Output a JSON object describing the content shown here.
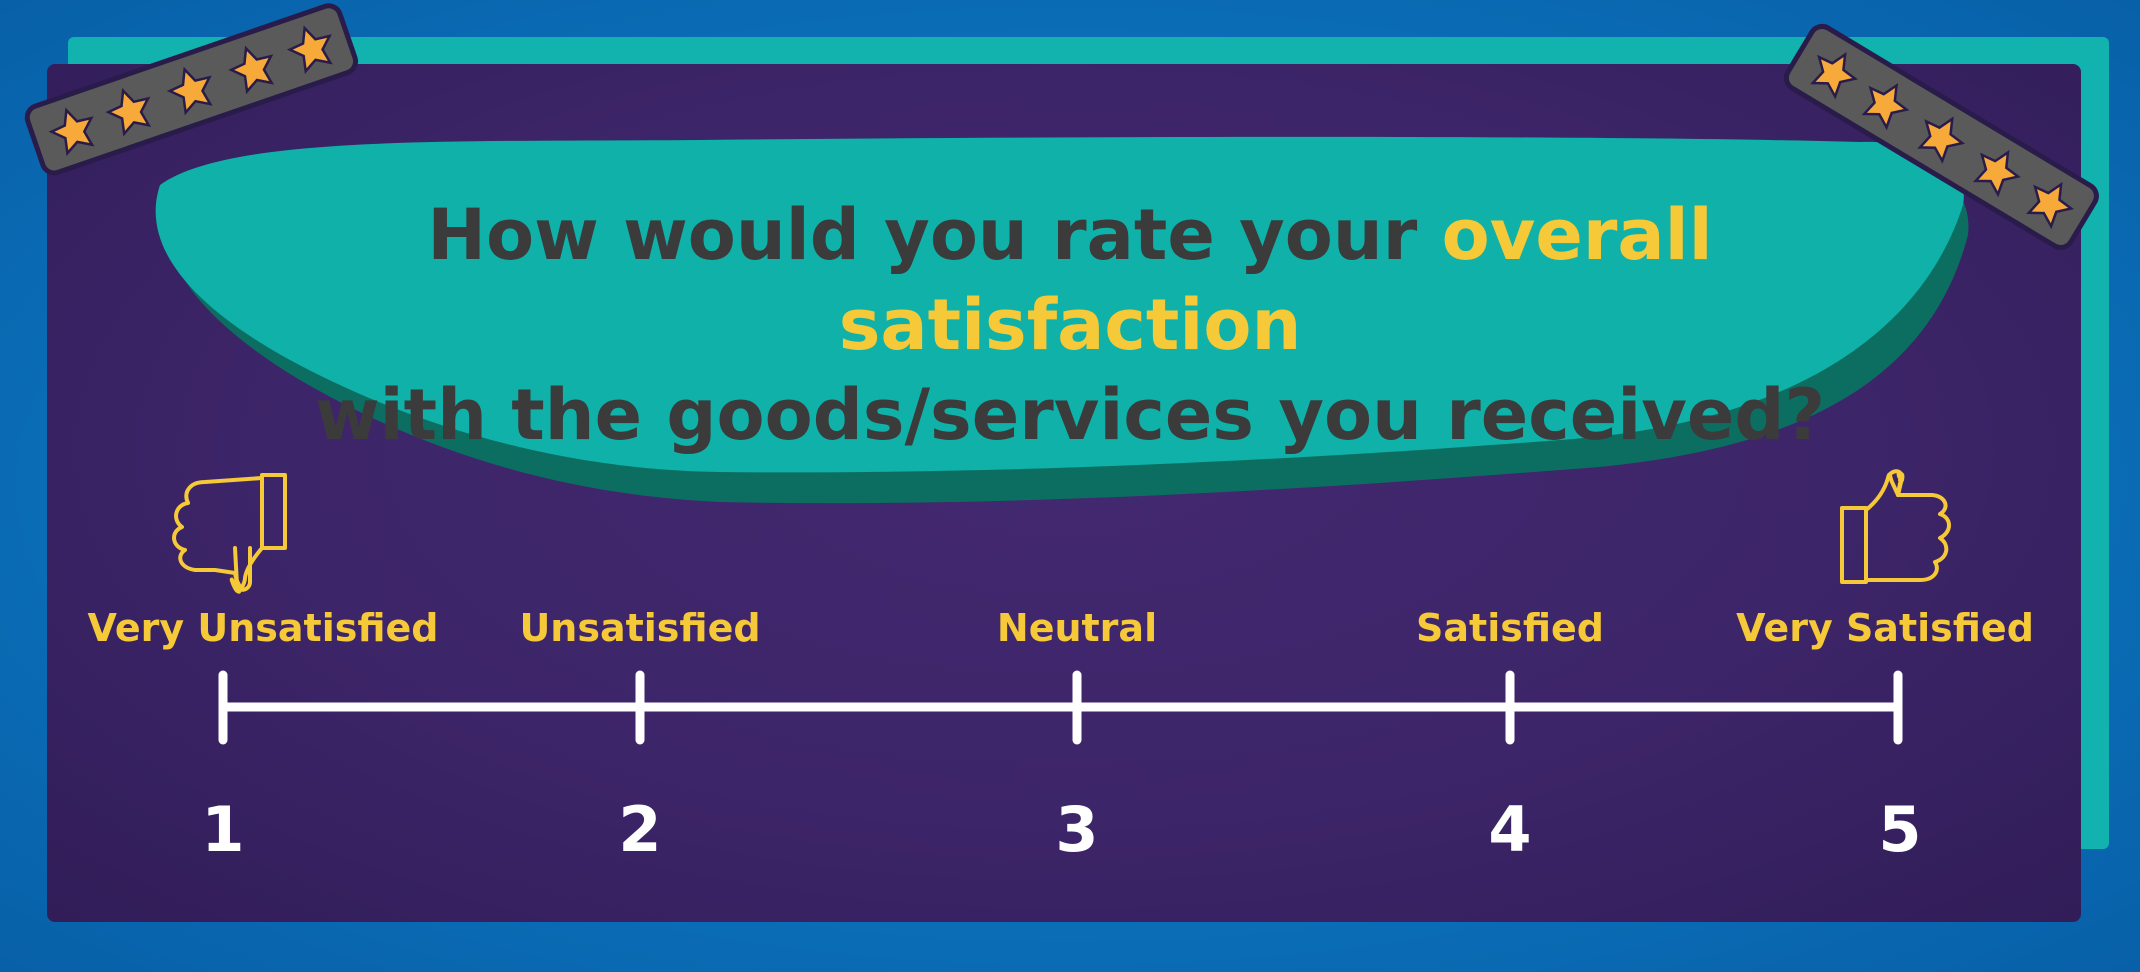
{
  "question": {
    "part1": "How would you rate your ",
    "highlight": "overall satisfaction",
    "part2": "with the goods/services you received?"
  },
  "scale": [
    {
      "value": "1",
      "label": "Very Unsatisfied"
    },
    {
      "value": "2",
      "label": "Unsatisfied"
    },
    {
      "value": "3",
      "label": "Neutral"
    },
    {
      "value": "4",
      "label": "Satisfied"
    },
    {
      "value": "5",
      "label": "Very Satisfied"
    }
  ],
  "icons": {
    "left": "thumbs-down-icon",
    "right": "thumbs-up-icon",
    "corners": "star-rating-icon"
  },
  "colors": {
    "background": "#0a6fb8",
    "panel": "#3d2569",
    "teal": "#12b3ae",
    "accent": "#f5c937",
    "question_text": "#3b3b3b",
    "line": "#ffffff"
  }
}
